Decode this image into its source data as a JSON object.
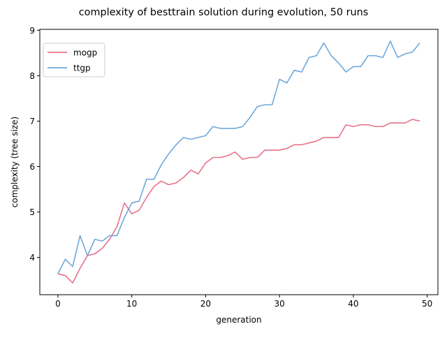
{
  "chart_data": {
    "type": "line",
    "title": "complexity of besttrain solution during evolution, 50 runs",
    "xlabel": "generation",
    "ylabel": "complexity (tree size)",
    "xlim": [
      -2.45,
      51.45
    ],
    "ylim": [
      3.18,
      9.02
    ],
    "xticks": [
      0,
      10,
      20,
      30,
      40,
      50
    ],
    "yticks": [
      4,
      5,
      6,
      7,
      8,
      9
    ],
    "x": [
      0,
      1,
      2,
      3,
      4,
      5,
      6,
      7,
      8,
      9,
      10,
      11,
      12,
      13,
      14,
      15,
      16,
      17,
      18,
      19,
      20,
      21,
      22,
      23,
      24,
      25,
      26,
      27,
      28,
      29,
      30,
      31,
      32,
      33,
      34,
      35,
      36,
      37,
      38,
      39,
      40,
      41,
      42,
      43,
      44,
      45,
      46,
      47,
      48,
      49
    ],
    "grid": false,
    "legend": "top-left",
    "series": [
      {
        "name": "mogp",
        "color": "#e8728a",
        "values": [
          3.64,
          3.6,
          3.44,
          3.76,
          4.04,
          4.08,
          4.2,
          4.4,
          4.68,
          5.2,
          4.96,
          5.04,
          5.32,
          5.56,
          5.68,
          5.6,
          5.64,
          5.76,
          5.92,
          5.84,
          6.08,
          6.2,
          6.2,
          6.24,
          6.32,
          6.16,
          6.2,
          6.2,
          6.36,
          6.36,
          6.36,
          6.4,
          6.48,
          6.48,
          6.52,
          6.56,
          6.64,
          6.64,
          6.64,
          6.92,
          6.88,
          6.92,
          6.92,
          6.88,
          6.88,
          6.96,
          6.96,
          6.96,
          7.04,
          7.0
        ]
      },
      {
        "name": "ttgp",
        "color": "#6fa8dc",
        "values": [
          3.64,
          3.96,
          3.8,
          4.48,
          4.04,
          4.4,
          4.36,
          4.48,
          4.48,
          4.88,
          5.2,
          5.24,
          5.72,
          5.72,
          6.04,
          6.28,
          6.48,
          6.64,
          6.6,
          6.64,
          6.68,
          6.88,
          6.84,
          6.84,
          6.84,
          6.88,
          7.08,
          7.32,
          7.36,
          7.36,
          7.92,
          7.84,
          8.12,
          8.08,
          8.4,
          8.44,
          8.72,
          8.44,
          8.28,
          8.08,
          8.2,
          8.2,
          8.44,
          8.44,
          8.4,
          8.76,
          8.4,
          8.48,
          8.52,
          8.72
        ]
      }
    ]
  }
}
